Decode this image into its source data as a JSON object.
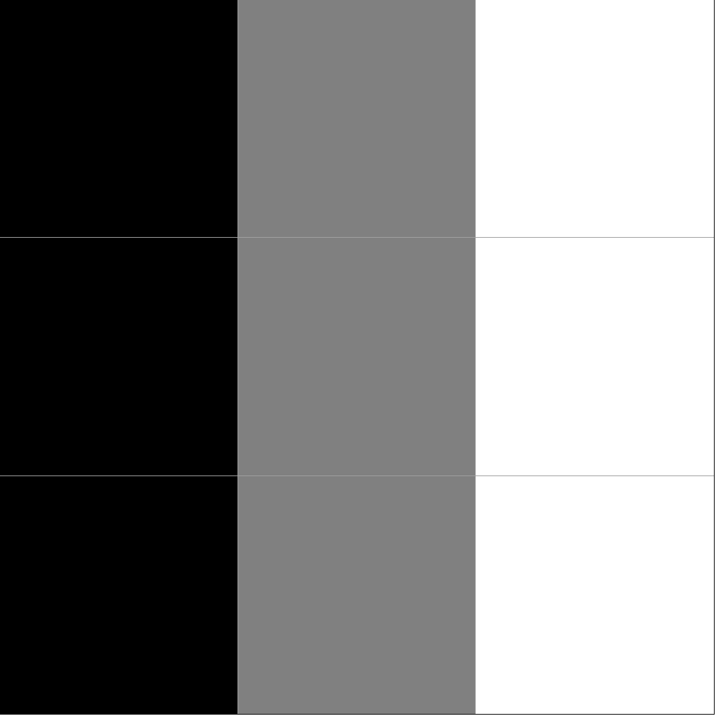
{
  "swatch_grid": {
    "colors": {
      "black": "#000000",
      "gray": "#808080",
      "white": "#ffffff",
      "divider": "#a0a0a0"
    },
    "rows": [
      [
        "#000000",
        "#808080",
        "#ffffff"
      ],
      [
        "#000000",
        "#808080",
        "#ffffff"
      ],
      [
        "#000000",
        "#808080",
        "#ffffff"
      ]
    ]
  }
}
